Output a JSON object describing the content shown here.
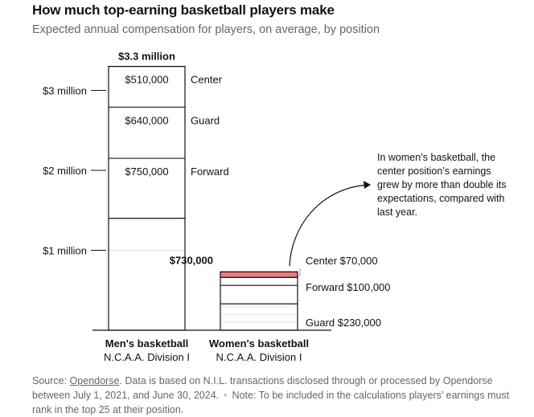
{
  "title": "How much top-earning basketball players make",
  "subtitle": "Expected annual compensation for players, on average, by position",
  "chart_data": {
    "type": "bar",
    "stacked": true,
    "ylim": [
      0,
      3300000
    ],
    "yticks": [
      {
        "value": 1000000,
        "label": "$1 million"
      },
      {
        "value": 2000000,
        "label": "$2 million"
      },
      {
        "value": 3000000,
        "label": "$3 million"
      }
    ],
    "grid": "light gridlines inside bars",
    "bars": [
      {
        "name": "Men's basketball",
        "sub": "N.C.A.A. Division I",
        "total": 3300000,
        "total_label": "$3.3 million",
        "segments": [
          {
            "position": "Forward",
            "value": 750000,
            "value_label": "$750,000",
            "color": "#ffffff"
          },
          {
            "position": "Guard",
            "value": 640000,
            "value_label": "$640,000",
            "color": "#ffffff"
          },
          {
            "position": "Center",
            "value": 510000,
            "value_label": "$510,000",
            "color": "#ffffff"
          }
        ]
      },
      {
        "name": "Women's basketball",
        "sub": "N.C.A.A. Division I",
        "total": 730000,
        "total_label": "$730,000",
        "segments": [
          {
            "position": "Guard",
            "value": 230000,
            "label": "Guard $230,000",
            "color": "#ffffff"
          },
          {
            "position": "Forward",
            "value": 100000,
            "label": "Forward $100,000",
            "color": "#ffffff"
          },
          {
            "position": "Center",
            "value": 70000,
            "label": "Center $70,000",
            "color": "#ed7b77"
          }
        ]
      }
    ],
    "annotation": "In women’s basketball, the center position’s earnings grew by more than double its expectations, compared with last year."
  },
  "footer": {
    "source_prefix": "Source: ",
    "source_link": "Opendorse",
    "source_text": ". Data is based on N.I.L. transactions disclosed through or processed by Opendorse between July 1, 2021, and June 30, 2024.",
    "separator": "•",
    "note": "Note: To be included in the calculations players’ earnings must rank in the top 25 at their position."
  }
}
